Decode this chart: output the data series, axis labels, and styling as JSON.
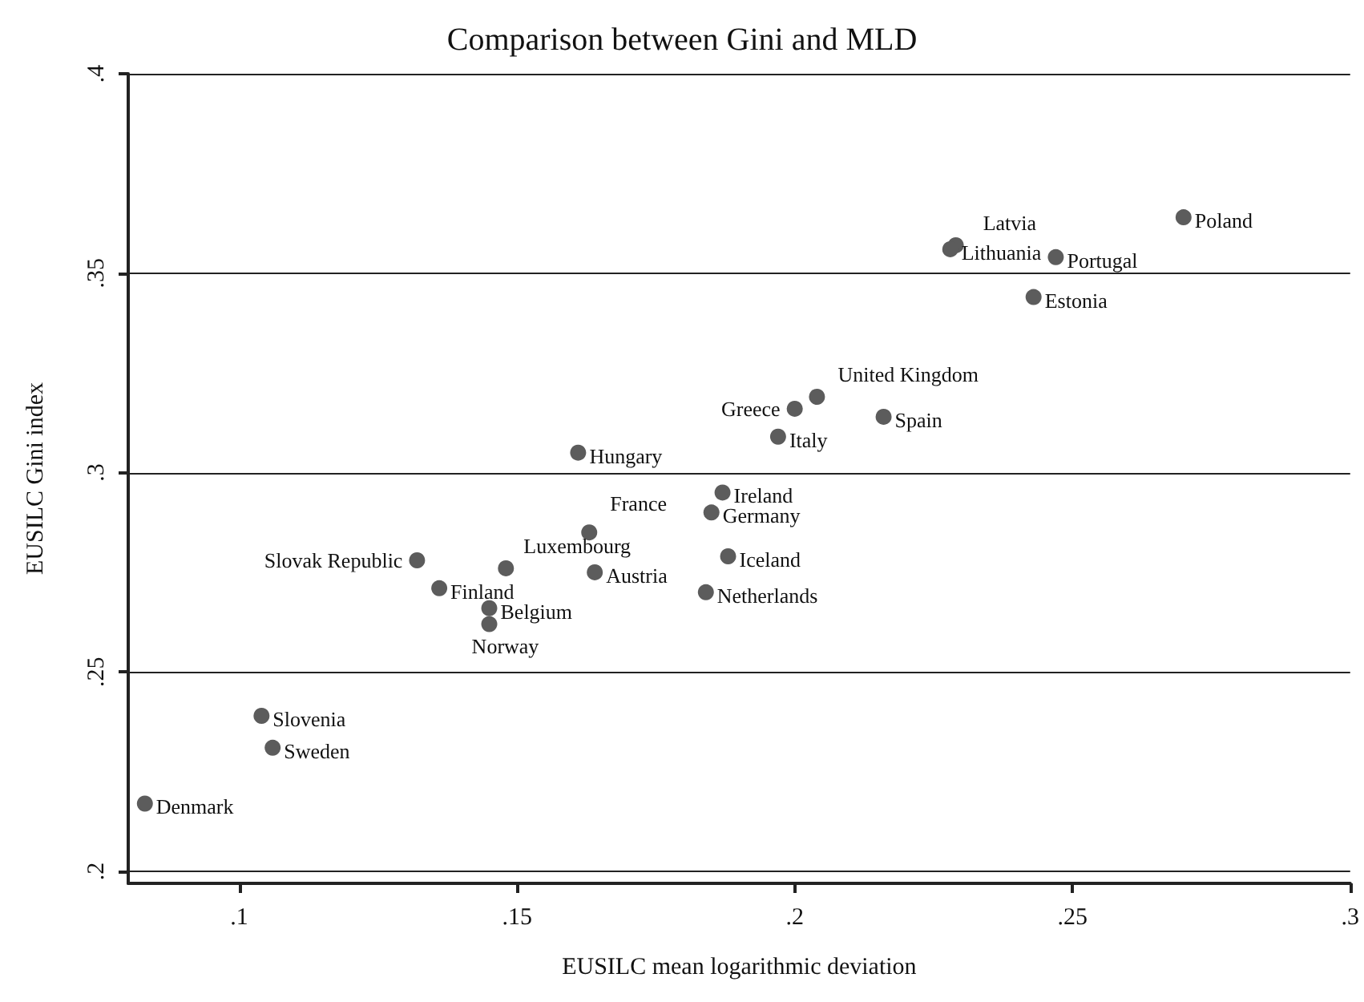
{
  "chart_data": {
    "type": "scatter",
    "title": "Comparison between Gini and MLD",
    "xlabel": "EUSILC mean logarithmic deviation",
    "ylabel": "EUSILC Gini index",
    "x": [
      0.083,
      0.104,
      0.106,
      0.132,
      0.136,
      0.145,
      0.145,
      0.148,
      0.163,
      0.164,
      0.161,
      0.187,
      0.185,
      0.188,
      0.184,
      0.197,
      0.2,
      0.204,
      0.216,
      0.229,
      0.228,
      0.247,
      0.27,
      0.243
    ],
    "series": [
      {
        "color": "#5c5c5c",
        "values": [
          0.217,
          0.239,
          0.231,
          0.278,
          0.271,
          0.266,
          0.262,
          0.276,
          0.285,
          0.275,
          0.305,
          0.295,
          0.29,
          0.279,
          0.27,
          0.309,
          0.316,
          0.319,
          0.314,
          0.357,
          0.356,
          0.354,
          0.364,
          0.344
        ]
      }
    ],
    "annotations": [
      {
        "text": "Denmark",
        "x": 0.083,
        "y": 0.217
      },
      {
        "text": "Slovenia",
        "x": 0.104,
        "y": 0.239
      },
      {
        "text": "Sweden",
        "x": 0.106,
        "y": 0.231
      },
      {
        "text": "Slovak Republic",
        "x": 0.132,
        "y": 0.278
      },
      {
        "text": "Finland",
        "x": 0.136,
        "y": 0.271
      },
      {
        "text": "Belgium",
        "x": 0.145,
        "y": 0.266
      },
      {
        "text": "Norway",
        "x": 0.145,
        "y": 0.262
      },
      {
        "text": "Luxembourg",
        "x": 0.148,
        "y": 0.276
      },
      {
        "text": "France",
        "x": 0.163,
        "y": 0.285
      },
      {
        "text": "Austria",
        "x": 0.164,
        "y": 0.275
      },
      {
        "text": "Hungary",
        "x": 0.161,
        "y": 0.305
      },
      {
        "text": "Ireland",
        "x": 0.187,
        "y": 0.295
      },
      {
        "text": "Germany",
        "x": 0.185,
        "y": 0.29
      },
      {
        "text": "Iceland",
        "x": 0.188,
        "y": 0.279
      },
      {
        "text": "Netherlands",
        "x": 0.184,
        "y": 0.27
      },
      {
        "text": "Italy",
        "x": 0.197,
        "y": 0.309
      },
      {
        "text": "Greece",
        "x": 0.2,
        "y": 0.316
      },
      {
        "text": "United Kingdom",
        "x": 0.204,
        "y": 0.319
      },
      {
        "text": "Spain",
        "x": 0.216,
        "y": 0.314
      },
      {
        "text": "Latvia",
        "x": 0.229,
        "y": 0.357
      },
      {
        "text": "Lithuania",
        "x": 0.228,
        "y": 0.356
      },
      {
        "text": "Portugal",
        "x": 0.247,
        "y": 0.354
      },
      {
        "text": "Poland",
        "x": 0.27,
        "y": 0.364
      },
      {
        "text": "Estonia",
        "x": 0.243,
        "y": 0.344
      }
    ],
    "xlim": [
      0.08,
      0.3
    ],
    "xticks": [
      {
        "value": 0.1,
        "label": ".1"
      },
      {
        "value": 0.15,
        "label": ".15"
      },
      {
        "value": 0.2,
        "label": ".2"
      },
      {
        "value": 0.25,
        "label": ".25"
      },
      {
        "value": 0.3,
        "label": ".3"
      }
    ],
    "ylim": [
      0.197,
      0.4
    ],
    "yticks": [
      {
        "value": 0.2,
        "label": ".2"
      },
      {
        "value": 0.25,
        "label": ".25"
      },
      {
        "value": 0.3,
        "label": ".3"
      },
      {
        "value": 0.35,
        "label": ".35"
      },
      {
        "value": 0.4,
        "label": ".4"
      }
    ],
    "grid": "y",
    "marker": "circle"
  }
}
